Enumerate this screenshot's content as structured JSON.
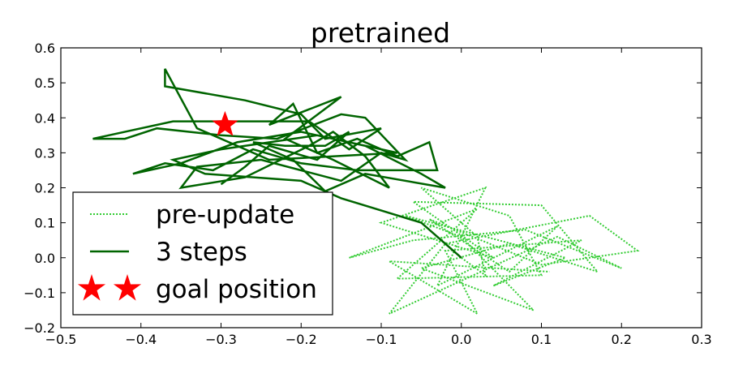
{
  "chart_data": {
    "type": "line",
    "title": "pretrained",
    "xlabel": "",
    "ylabel": "",
    "xlim": [
      -0.5,
      0.3
    ],
    "ylim": [
      -0.2,
      0.6
    ],
    "x_ticks": [
      -0.5,
      -0.4,
      -0.3,
      -0.2,
      -0.1,
      0.0,
      0.1,
      0.2,
      0.3
    ],
    "y_ticks": [
      -0.2,
      -0.1,
      0.0,
      0.1,
      0.2,
      0.3,
      0.4,
      0.5,
      0.6
    ],
    "x_tick_labels": [
      "−0.5",
      "−0.4",
      "−0.3",
      "−0.2",
      "−0.1",
      "0.0",
      "0.1",
      "0.2",
      "0.3"
    ],
    "y_tick_labels": [
      "−0.2",
      "−0.1",
      "0.0",
      "0.1",
      "0.2",
      "0.3",
      "0.4",
      "0.5",
      "0.6"
    ],
    "grid": false,
    "legend_position": "lower-left",
    "series": [
      {
        "name": "pre-update",
        "style": "dotted",
        "color": "#33cc33",
        "points": [
          [
            0.0,
            0.0
          ],
          [
            0.03,
            -0.05
          ],
          [
            0.02,
            0.06
          ],
          [
            -0.05,
            0.2
          ],
          [
            0.06,
            0.12
          ],
          [
            0.1,
            -0.05
          ],
          [
            -0.08,
            -0.06
          ],
          [
            0.02,
            0.14
          ],
          [
            -0.14,
            0.0
          ],
          [
            -0.06,
            0.05
          ],
          [
            0.08,
            0.08
          ],
          [
            0.2,
            -0.03
          ],
          [
            0.12,
            0.06
          ],
          [
            -0.09,
            -0.16
          ],
          [
            -0.02,
            0.04
          ],
          [
            0.16,
            0.12
          ],
          [
            0.22,
            0.02
          ],
          [
            0.1,
            -0.02
          ],
          [
            -0.04,
            0.11
          ],
          [
            0.06,
            -0.04
          ],
          [
            0.12,
            0.09
          ],
          [
            -0.03,
            -0.08
          ],
          [
            0.03,
            0.2
          ],
          [
            -0.1,
            0.1
          ],
          [
            0.04,
            0.0
          ],
          [
            -0.06,
            0.16
          ],
          [
            0.1,
            0.15
          ],
          [
            0.17,
            -0.04
          ],
          [
            0.06,
            0.04
          ],
          [
            -0.05,
            -0.03
          ],
          [
            0.09,
            -0.15
          ],
          [
            0.0,
            0.06
          ],
          [
            -0.07,
            0.12
          ],
          [
            0.13,
            0.0
          ],
          [
            0.04,
            -0.08
          ],
          [
            0.15,
            0.05
          ],
          [
            -0.02,
            0.02
          ],
          [
            0.02,
            -0.16
          ],
          [
            -0.09,
            -0.01
          ],
          [
            0.11,
            -0.04
          ]
        ]
      },
      {
        "name": "3 steps",
        "style": "solid",
        "color": "#006400",
        "points": [
          [
            0.0,
            0.0
          ],
          [
            -0.05,
            0.1
          ],
          [
            -0.15,
            0.17
          ],
          [
            -0.2,
            0.22
          ],
          [
            -0.32,
            0.24
          ],
          [
            -0.36,
            0.28
          ],
          [
            -0.3,
            0.31
          ],
          [
            -0.18,
            0.35
          ],
          [
            -0.08,
            0.3
          ],
          [
            -0.24,
            0.28
          ],
          [
            -0.33,
            0.37
          ],
          [
            -0.37,
            0.54
          ],
          [
            -0.37,
            0.49
          ],
          [
            -0.27,
            0.45
          ],
          [
            -0.2,
            0.41
          ],
          [
            -0.17,
            0.34
          ],
          [
            -0.1,
            0.37
          ],
          [
            -0.14,
            0.31
          ],
          [
            -0.19,
            0.39
          ],
          [
            -0.3,
            0.39
          ],
          [
            -0.36,
            0.39
          ],
          [
            -0.46,
            0.34
          ],
          [
            -0.42,
            0.34
          ],
          [
            -0.38,
            0.37
          ],
          [
            -0.3,
            0.35
          ],
          [
            -0.23,
            0.34
          ],
          [
            -0.15,
            0.41
          ],
          [
            -0.12,
            0.4
          ],
          [
            -0.07,
            0.28
          ],
          [
            -0.1,
            0.3
          ],
          [
            -0.15,
            0.22
          ],
          [
            -0.25,
            0.28
          ],
          [
            -0.33,
            0.26
          ],
          [
            -0.35,
            0.2
          ],
          [
            -0.27,
            0.23
          ],
          [
            -0.19,
            0.32
          ],
          [
            -0.16,
            0.36
          ],
          [
            -0.12,
            0.29
          ],
          [
            -0.09,
            0.2
          ],
          [
            -0.16,
            0.28
          ],
          [
            -0.22,
            0.34
          ],
          [
            -0.15,
            0.46
          ],
          [
            -0.24,
            0.38
          ],
          [
            -0.21,
            0.44
          ],
          [
            -0.18,
            0.3
          ],
          [
            -0.13,
            0.34
          ],
          [
            -0.08,
            0.29
          ],
          [
            -0.04,
            0.33
          ],
          [
            -0.03,
            0.25
          ],
          [
            -0.13,
            0.25
          ],
          [
            -0.2,
            0.27
          ],
          [
            -0.26,
            0.31
          ],
          [
            -0.31,
            0.25
          ],
          [
            -0.37,
            0.27
          ],
          [
            -0.41,
            0.24
          ],
          [
            -0.35,
            0.27
          ],
          [
            -0.28,
            0.33
          ],
          [
            -0.2,
            0.36
          ],
          [
            -0.12,
            0.32
          ],
          [
            -0.05,
            0.24
          ],
          [
            -0.02,
            0.2
          ],
          [
            -0.12,
            0.24
          ],
          [
            -0.17,
            0.19
          ],
          [
            -0.21,
            0.28
          ],
          [
            -0.26,
            0.33
          ],
          [
            -0.22,
            0.32
          ],
          [
            -0.17,
            0.32
          ],
          [
            -0.14,
            0.36
          ],
          [
            -0.18,
            0.28
          ],
          [
            -0.24,
            0.32
          ],
          [
            -0.27,
            0.26
          ],
          [
            -0.3,
            0.21
          ]
        ]
      }
    ],
    "goal_position": {
      "name": "goal position",
      "x": -0.295,
      "y": 0.38,
      "marker": "star",
      "color": "#ff0000"
    }
  }
}
